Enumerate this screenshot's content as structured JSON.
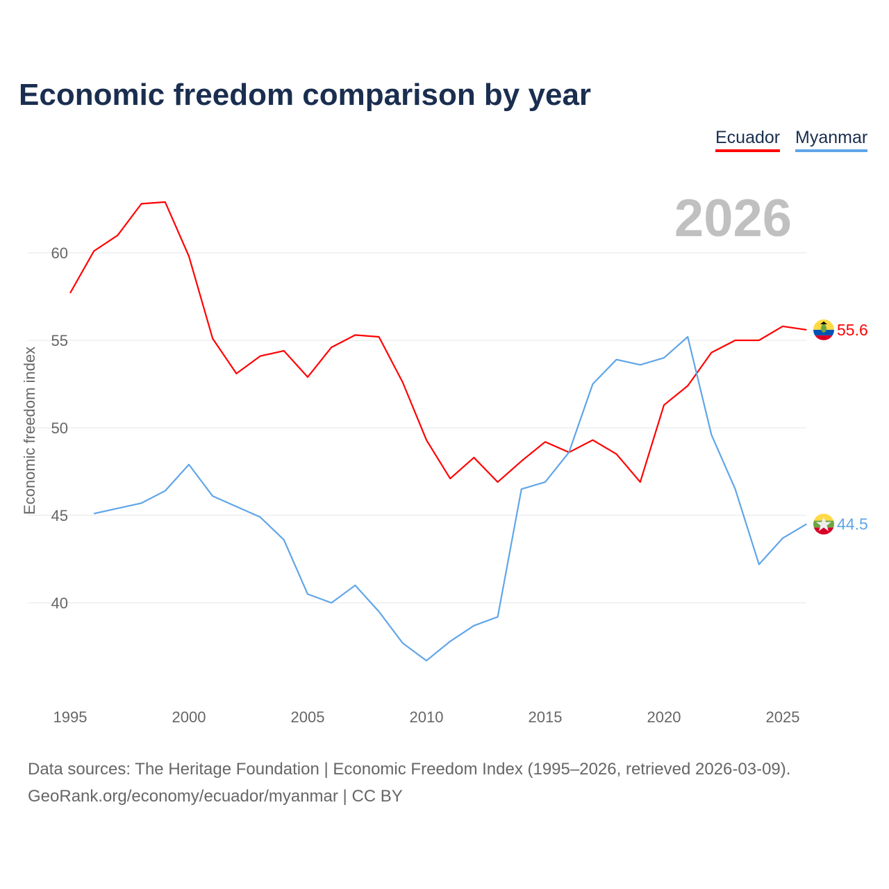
{
  "chart_data": {
    "type": "line",
    "title": "Economic freedom comparison by year",
    "xlabel": "",
    "ylabel": "Economic freedom index",
    "year_label": "2026",
    "xlim": [
      1995,
      2026
    ],
    "ylim": [
      35,
      64
    ],
    "x_ticks": [
      1995,
      2000,
      2005,
      2010,
      2015,
      2020,
      2025
    ],
    "y_ticks": [
      40,
      45,
      50,
      55,
      60
    ],
    "grid": true,
    "legend_position": "top-right",
    "series": [
      {
        "name": "Ecuador",
        "color": "#ff0000",
        "end_label": "55.6",
        "flag": "ecuador-flag",
        "x": [
          1995,
          1996,
          1997,
          1998,
          1999,
          2000,
          2001,
          2002,
          2003,
          2004,
          2005,
          2006,
          2007,
          2008,
          2009,
          2010,
          2011,
          2012,
          2013,
          2014,
          2015,
          2016,
          2017,
          2018,
          2019,
          2020,
          2021,
          2022,
          2023,
          2024,
          2025,
          2026
        ],
        "values": [
          57.7,
          60.1,
          61.0,
          62.8,
          62.9,
          59.8,
          55.1,
          53.1,
          54.1,
          54.4,
          52.9,
          54.6,
          55.3,
          55.2,
          52.6,
          49.3,
          47.1,
          48.3,
          46.9,
          48.1,
          49.2,
          48.6,
          49.3,
          48.5,
          46.9,
          51.3,
          52.4,
          54.3,
          55.0,
          55.0,
          55.8,
          55.6
        ]
      },
      {
        "name": "Myanmar",
        "color": "#60a5e8",
        "end_label": "44.5",
        "flag": "myanmar-flag",
        "x": [
          1996,
          1997,
          1998,
          1999,
          2000,
          2001,
          2002,
          2003,
          2004,
          2005,
          2006,
          2007,
          2008,
          2009,
          2010,
          2011,
          2012,
          2013,
          2014,
          2015,
          2016,
          2017,
          2018,
          2019,
          2020,
          2021,
          2022,
          2023,
          2024,
          2025,
          2026
        ],
        "values": [
          45.1,
          45.4,
          45.7,
          46.4,
          47.9,
          46.1,
          45.5,
          44.9,
          43.6,
          40.5,
          40.0,
          41.0,
          39.5,
          37.7,
          36.7,
          37.8,
          38.7,
          39.2,
          46.5,
          46.9,
          48.6,
          52.5,
          53.9,
          53.6,
          54.0,
          55.2,
          49.6,
          46.5,
          42.2,
          43.7,
          44.5
        ]
      }
    ]
  },
  "legend": {
    "ecuador": "Ecuador",
    "myanmar": "Myanmar"
  },
  "footer": {
    "line1": "Data sources: The Heritage Foundation | Economic Freedom Index (1995–2026, retrieved 2026-03-09).",
    "line2": "GeoRank.org/economy/ecuador/myanmar | CC BY"
  }
}
